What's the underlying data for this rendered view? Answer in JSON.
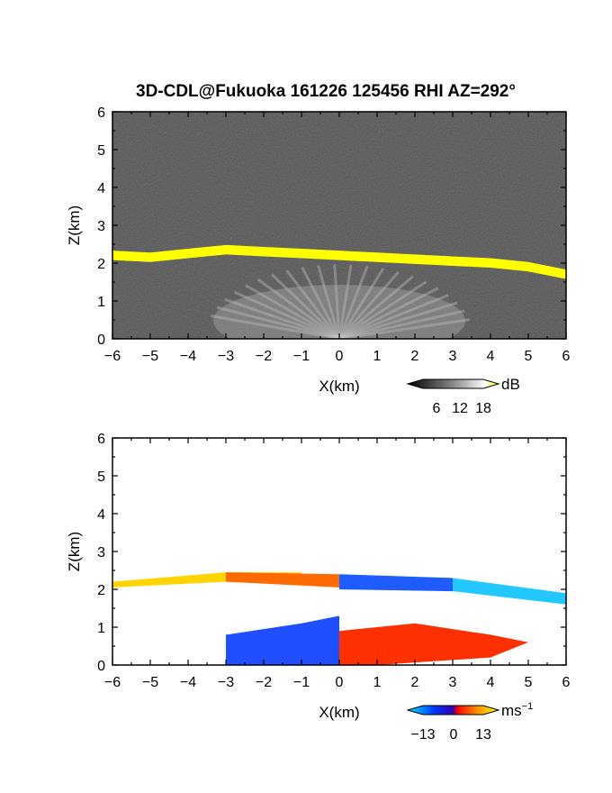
{
  "figure_title": "3D-CDL@Fukuoka 161226 125456 RHI AZ=292°",
  "chart_data": [
    {
      "type": "heatmap",
      "field": "reflectivity",
      "xlabel": "X(km)",
      "ylabel": "Z(km)",
      "xlim": [
        -6,
        6
      ],
      "ylim": [
        0,
        6
      ],
      "xticks": [
        "-6",
        "-5",
        "-4",
        "-3",
        "-2",
        "-1",
        "0",
        "1",
        "2",
        "3",
        "4",
        "5",
        "6"
      ],
      "yticks": [
        "0",
        "1",
        "2",
        "3",
        "4",
        "5",
        "6"
      ],
      "colorbar": {
        "unit": "dB",
        "ticks": [
          "6",
          "12",
          "18"
        ],
        "values": [
          6,
          12,
          18
        ],
        "colors": [
          "#000000",
          "#ffffff",
          "#ffff00"
        ]
      },
      "layer_top_km": [
        {
          "x": -6,
          "z": 2.3
        },
        {
          "x": -5,
          "z": 2.25
        },
        {
          "x": -4,
          "z": 2.35
        },
        {
          "x": -3,
          "z": 2.45
        },
        {
          "x": -2,
          "z": 2.4
        },
        {
          "x": -1,
          "z": 2.35
        },
        {
          "x": 0,
          "z": 2.3
        },
        {
          "x": 1,
          "z": 2.25
        },
        {
          "x": 2,
          "z": 2.2
        },
        {
          "x": 3,
          "z": 2.15
        },
        {
          "x": 4,
          "z": 2.1
        },
        {
          "x": 5,
          "z": 2.0
        },
        {
          "x": 6,
          "z": 1.8
        }
      ]
    },
    {
      "type": "heatmap",
      "field": "doppler_velocity",
      "xlabel": "X(km)",
      "ylabel": "Z(km)",
      "xlim": [
        -6,
        6
      ],
      "ylim": [
        0,
        6
      ],
      "xticks": [
        "-6",
        "-5",
        "-4",
        "-3",
        "-2",
        "-1",
        "0",
        "1",
        "2",
        "3",
        "4",
        "5",
        "6"
      ],
      "yticks": [
        "0",
        "1",
        "2",
        "3",
        "4",
        "5",
        "6"
      ],
      "colorbar": {
        "unit": "ms",
        "unit_exp": "−1",
        "ticks": [
          "−13",
          "0",
          "13"
        ],
        "values": [
          -13,
          0,
          13
        ],
        "colors": [
          "#00ffff",
          "#0000ff",
          "#ff0000",
          "#ffff00"
        ]
      }
    }
  ]
}
